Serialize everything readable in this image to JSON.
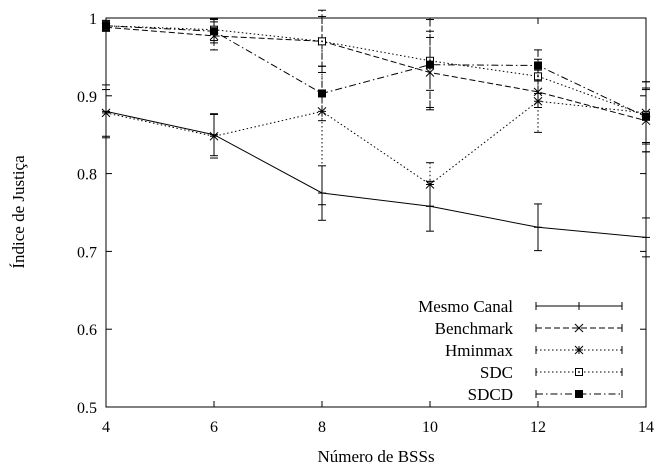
{
  "chart_data": {
    "type": "line",
    "title": "",
    "xlabel": "Número de BSSs",
    "ylabel": "Índice de Justiça",
    "x": [
      4,
      6,
      8,
      10,
      12,
      14
    ],
    "x_ticks": [
      "4",
      "6",
      "8",
      "10",
      "12",
      "14"
    ],
    "y_ticks": [
      "0.5",
      "0.6",
      "0.7",
      "0.8",
      "0.9",
      "1"
    ],
    "xlim": [
      4,
      14
    ],
    "ylim": [
      0.5,
      1.0
    ],
    "grid": false,
    "legend_position": "bottom-right",
    "series": [
      {
        "name": "Mesmo Canal",
        "line_style": "solid",
        "marker": "plus",
        "values": [
          0.88,
          0.85,
          0.775,
          0.758,
          0.731,
          0.718
        ],
        "error": [
          0.034,
          0.027,
          0.035,
          0.032,
          0.03,
          0.025
        ]
      },
      {
        "name": "Benchmark",
        "line_style": "dashed",
        "marker": "x",
        "values": [
          0.988,
          0.977,
          0.97,
          0.93,
          0.905,
          0.868
        ],
        "error": [
          0.005,
          0.018,
          0.032,
          0.045,
          0.02,
          0.04
        ]
      },
      {
        "name": "Hminmax",
        "line_style": "dotted",
        "marker": "star",
        "values": [
          0.878,
          0.848,
          0.88,
          0.786,
          0.893,
          0.878
        ],
        "error": [
          0.03,
          0.028,
          0.12,
          0.028,
          0.04,
          0.04
        ]
      },
      {
        "name": "SDC",
        "line_style": "dotted",
        "marker": "open-square",
        "values": [
          0.99,
          0.985,
          0.97,
          0.945,
          0.925,
          0.875
        ],
        "error": [
          0.006,
          0.014,
          0.04,
          0.038,
          0.022,
          0.035
        ]
      },
      {
        "name": "SDCD",
        "line_style": "dashdot",
        "marker": "filled-square",
        "values": [
          0.99,
          0.983,
          0.903,
          0.94,
          0.939,
          0.873
        ],
        "error": [
          0.007,
          0.015,
          0.035,
          0.058,
          0.02,
          0.045
        ]
      }
    ]
  }
}
